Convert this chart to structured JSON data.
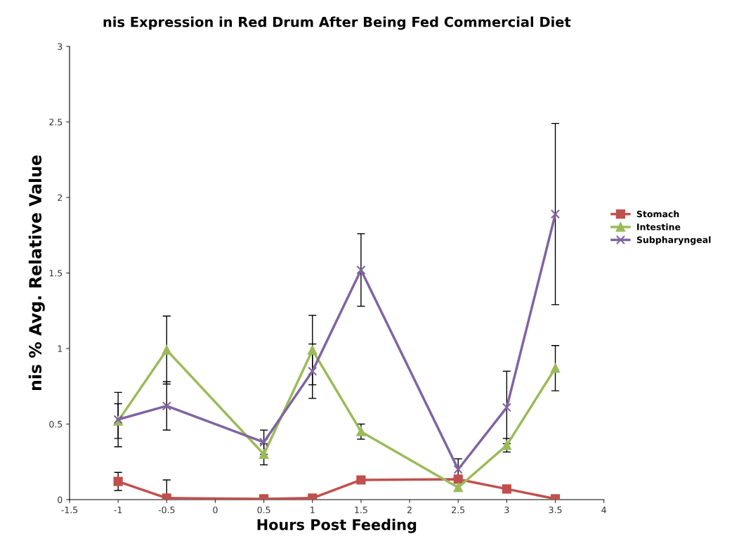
{
  "chart_data": {
    "type": "line",
    "title": "nis Expression in Red Drum After Being Fed Commercial Diet",
    "xlabel": "Hours Post Feeding",
    "ylabel": "nis % Avg. Relative Value",
    "x": [
      -1,
      -0.5,
      0.5,
      1,
      1.5,
      2.5,
      3,
      3.5
    ],
    "series": [
      {
        "name": "Stomach",
        "color": "#c0504d",
        "marker": "square",
        "values": [
          0.12,
          0.01,
          0.005,
          0.01,
          0.13,
          0.135,
          0.07,
          0.005
        ],
        "errors": [
          0.06,
          [
            0.01,
            0.13
          ],
          null,
          null,
          0.01,
          null,
          null,
          null
        ]
      },
      {
        "name": "Intestine",
        "color": "#9bbb59",
        "marker": "triangle",
        "values": [
          0.52,
          0.99,
          0.3,
          0.99,
          0.45,
          0.08,
          0.36,
          0.87
        ],
        "errors": [
          0.115,
          0.225,
          0.07,
          0.23,
          0.05,
          null,
          0.045,
          0.15
        ]
      },
      {
        "name": "Subpharyngeal",
        "color": "#8064a2",
        "marker": "cross",
        "values": [
          0.53,
          0.62,
          0.38,
          0.85,
          1.52,
          0.2,
          0.61,
          1.89
        ],
        "errors": [
          0.18,
          0.16,
          0.08,
          0.18,
          0.24,
          0.07,
          0.24,
          0.6
        ]
      }
    ],
    "xlim": [
      -1.5,
      4
    ],
    "xticks": [
      -1.5,
      -1,
      -0.5,
      0,
      0.5,
      1,
      1.5,
      2,
      2.5,
      3,
      3.5,
      4
    ],
    "ylim": [
      0,
      3
    ],
    "yticks": [
      0,
      0.5,
      1,
      1.5,
      2,
      2.5,
      3
    ],
    "grid": false,
    "legend": "right",
    "line_style": "solid"
  }
}
